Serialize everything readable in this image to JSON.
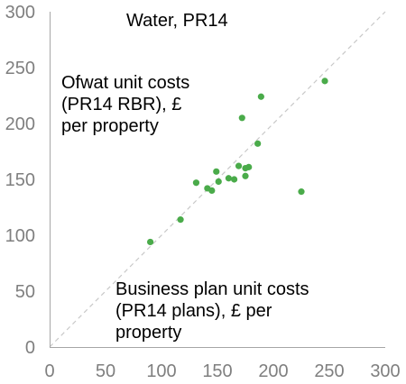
{
  "chart_data": {
    "type": "scatter",
    "title": "Water, PR14",
    "ylabel_annotation": "Ofwat unit costs (PR14 RBR), £ per property",
    "xlabel_annotation": "Business plan unit costs (PR14 plans), £ per property",
    "xlim": [
      0,
      300
    ],
    "ylim": [
      0,
      300
    ],
    "xticks": [
      0,
      50,
      100,
      150,
      200,
      250,
      300
    ],
    "yticks": [
      0,
      50,
      100,
      150,
      200,
      250,
      300
    ],
    "grid": false,
    "reference_line": "y = x (dashed)",
    "point_color": "#4aab4a",
    "reference_color": "#c8c8c8",
    "axis_color": "#a6a6a6",
    "points": [
      {
        "x": 90,
        "y": 94
      },
      {
        "x": 117,
        "y": 114
      },
      {
        "x": 131,
        "y": 147
      },
      {
        "x": 141,
        "y": 142
      },
      {
        "x": 145,
        "y": 140
      },
      {
        "x": 149,
        "y": 157
      },
      {
        "x": 151,
        "y": 148
      },
      {
        "x": 160,
        "y": 151
      },
      {
        "x": 165,
        "y": 150
      },
      {
        "x": 169,
        "y": 162
      },
      {
        "x": 172,
        "y": 205
      },
      {
        "x": 175,
        "y": 153
      },
      {
        "x": 175,
        "y": 160
      },
      {
        "x": 178,
        "y": 161
      },
      {
        "x": 186,
        "y": 182
      },
      {
        "x": 189,
        "y": 224
      },
      {
        "x": 225,
        "y": 139
      },
      {
        "x": 246,
        "y": 238
      }
    ]
  }
}
